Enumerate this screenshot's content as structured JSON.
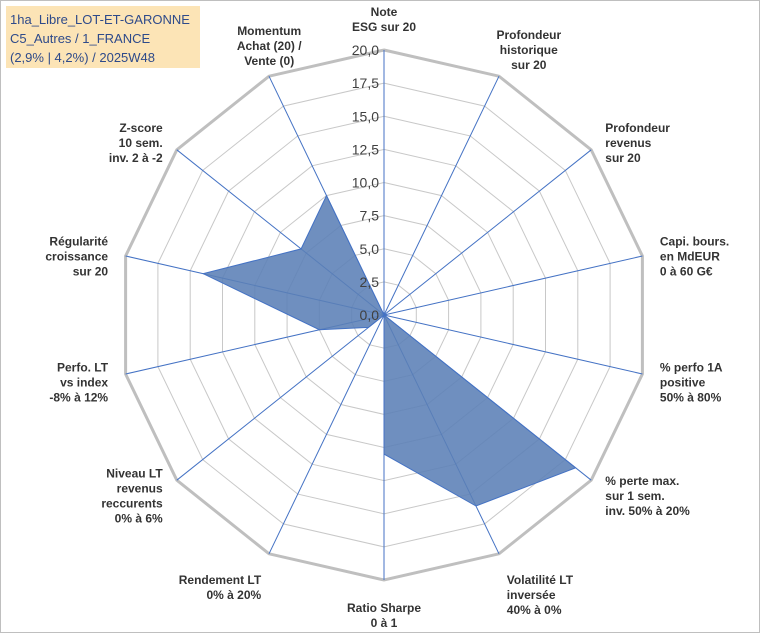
{
  "title_box": {
    "lines": [
      "1ha_Libre_LOT-ET-GARONNE",
      "C5_Autres / 1_FRANCE",
      "(2,9% | 4,2%) / 2025W48"
    ]
  },
  "chart_data": {
    "type": "radar",
    "title": "",
    "rlim": [
      0,
      20
    ],
    "tick_step": 2.5,
    "tick_labels": [
      "0,0",
      "2,5",
      "5,0",
      "7,5",
      "10,0",
      "12,5",
      "15,0",
      "17,5",
      "20,0"
    ],
    "grid": true,
    "legend": "none",
    "colors": {
      "fill": "#5b7fb6",
      "axis": "#4472c4",
      "grid": "#c8c8c8",
      "outer": "#bfbfbf"
    },
    "axes": [
      [
        "Note",
        "ESG sur 20"
      ],
      [
        "Profondeur",
        "historique",
        "sur 20"
      ],
      [
        "Profondeur",
        "revenus",
        "sur 20"
      ],
      [
        "Capi. bours.",
        "en MdEUR",
        "0 à 60 G€"
      ],
      [
        "% perfo 1A",
        "positive",
        "50% à 80%"
      ],
      [
        "% perte max.",
        "sur 1 sem.",
        "inv. 50% à 20%"
      ],
      [
        "Volatilité LT",
        "inversée",
        "40% à 0%"
      ],
      [
        "Ratio Sharpe",
        "0 à 1"
      ],
      [
        "Rendement LT",
        "0% à 20%"
      ],
      [
        "Niveau LT",
        "revenus",
        "reccurents",
        "0% à 6%"
      ],
      [
        "Perfo. LT",
        "vs index",
        "-8% à 12%"
      ],
      [
        "Régularité",
        "croissance",
        "sur 20"
      ],
      [
        "Z-score",
        "10 sem.",
        "inv. 2 à -2"
      ],
      [
        "Momentum",
        "Achat (20) /",
        "Vente (0)"
      ]
    ],
    "series": [
      {
        "values": [
          0,
          0,
          0,
          0,
          0,
          18.5,
          16,
          10.5,
          0,
          1.5,
          5,
          14,
          8,
          10
        ]
      }
    ]
  }
}
